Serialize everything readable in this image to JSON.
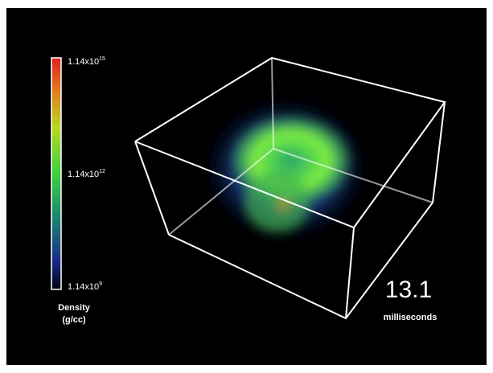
{
  "colorbar": {
    "ticks": [
      {
        "base": "1.14x10",
        "exponent": "15"
      },
      {
        "base": "1.14x10",
        "exponent": "12"
      },
      {
        "base": "1.14x10",
        "exponent": "9"
      }
    ],
    "label": "Density",
    "unit": "(g/cc)"
  },
  "time": {
    "value": 13.1,
    "unit": "milliseconds"
  }
}
